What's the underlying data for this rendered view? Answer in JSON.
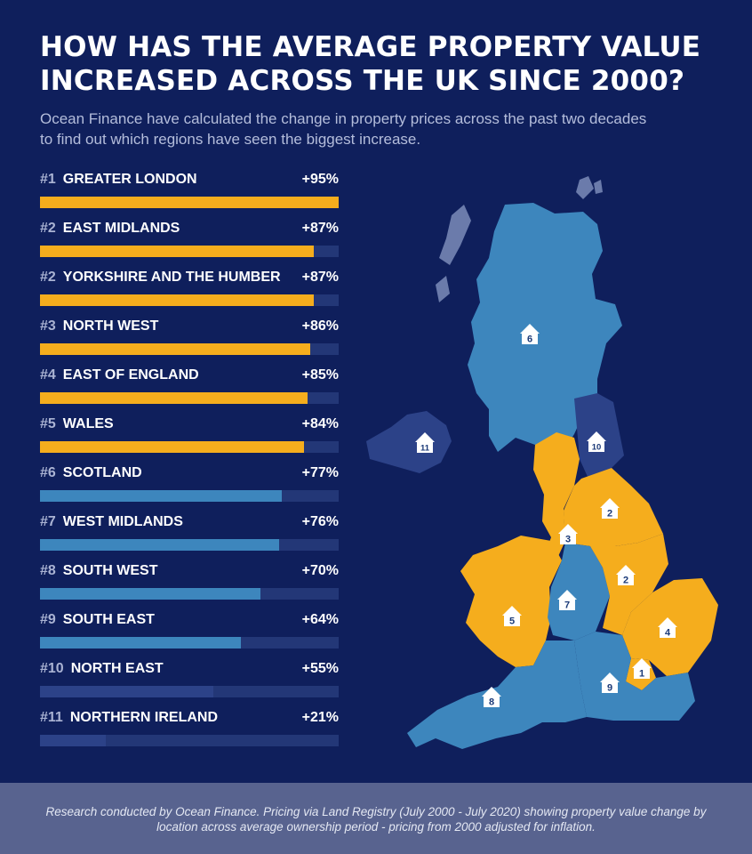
{
  "title": "HOW HAS THE AVERAGE PROPERTY VALUE INCREASED ACROSS THE UK SINCE 2000?",
  "subtitle": "Ocean Finance have calculated the change in property prices across the past two decades to find out which regions have seen the biggest increase.",
  "colors": {
    "background": "#0f1f5c",
    "top_tier": "#f5ad1d",
    "mid_tier": "#3d86bd",
    "low_tier": "#2c4288",
    "track": "#233777",
    "footer": "#58638f"
  },
  "chart_data": {
    "type": "bar",
    "orientation": "horizontal",
    "xlim": [
      0,
      95
    ],
    "categories": [
      "GREATER LONDON",
      "EAST MIDLANDS",
      "YORKSHIRE AND THE HUMBER",
      "NORTH WEST",
      "EAST OF ENGLAND",
      "WALES",
      "SCOTLAND",
      "WEST MIDLANDS",
      "SOUTH WEST",
      "SOUTH EAST",
      "NORTH EAST",
      "NORTHERN IRELAND"
    ],
    "ranks": [
      "#1",
      "#2",
      "#2",
      "#3",
      "#4",
      "#5",
      "#6",
      "#7",
      "#8",
      "#9",
      "#10",
      "#11"
    ],
    "values": [
      95,
      87,
      87,
      86,
      85,
      84,
      77,
      76,
      70,
      64,
      55,
      21
    ],
    "value_labels": [
      "+95%",
      "+87%",
      "+87%",
      "+86%",
      "+85%",
      "+84%",
      "+77%",
      "+76%",
      "+70%",
      "+64%",
      "+55%",
      "+21%"
    ],
    "tiers": [
      "top",
      "top",
      "top",
      "top",
      "top",
      "top",
      "mid",
      "mid",
      "mid",
      "mid",
      "low",
      "low"
    ]
  },
  "map": {
    "markers": [
      {
        "region": "SCOTLAND",
        "label": "6"
      },
      {
        "region": "NORTHERN IRELAND",
        "label": "11"
      },
      {
        "region": "NORTH EAST",
        "label": "10"
      },
      {
        "region": "YORKSHIRE AND THE HUMBER",
        "label": "2"
      },
      {
        "region": "NORTH WEST",
        "label": "3"
      },
      {
        "region": "EAST MIDLANDS",
        "label": "2"
      },
      {
        "region": "WEST MIDLANDS",
        "label": "7"
      },
      {
        "region": "WALES",
        "label": "5"
      },
      {
        "region": "EAST OF ENGLAND",
        "label": "4"
      },
      {
        "region": "GREATER LONDON",
        "label": "1"
      },
      {
        "region": "SOUTH EAST",
        "label": "9"
      },
      {
        "region": "SOUTH WEST",
        "label": "8"
      }
    ]
  },
  "footnote": "Research conducted by Ocean Finance. Pricing via Land Registry (July 2000 - July 2020) showing property value change by location across average ownership period - pricing from 2000 adjusted for inflation."
}
